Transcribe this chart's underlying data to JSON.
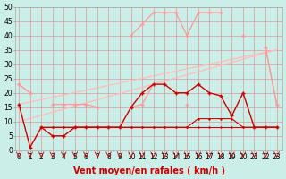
{
  "background_color": "#cceee8",
  "grid_color": "#dd8888",
  "xlabel": "Vent moyen/en rafales ( km/h )",
  "xlim": [
    -0.3,
    23.5
  ],
  "ylim": [
    0,
    50
  ],
  "yticks": [
    0,
    5,
    10,
    15,
    20,
    25,
    30,
    35,
    40,
    45,
    50
  ],
  "xticks": [
    0,
    1,
    2,
    3,
    4,
    5,
    6,
    7,
    8,
    9,
    10,
    11,
    12,
    13,
    14,
    15,
    16,
    17,
    18,
    19,
    20,
    21,
    22,
    23
  ],
  "tick_fontsize": 5.5,
  "label_fontsize": 7,
  "series": {
    "trend1": {
      "color": "#ffbbbb",
      "linewidth": 0.9,
      "x": [
        0,
        23
      ],
      "y": [
        10,
        35
      ]
    },
    "trend2": {
      "color": "#ffbbbb",
      "linewidth": 0.9,
      "x": [
        0,
        23
      ],
      "y": [
        16,
        35
      ]
    },
    "upper_jagged": {
      "color": "#ff9999",
      "linewidth": 0.9,
      "marker": "+",
      "markersize": 3,
      "x": [
        0,
        1,
        2,
        3,
        4,
        5,
        6,
        7,
        8,
        9,
        10,
        11,
        12,
        13,
        14,
        15,
        16,
        17,
        18,
        19,
        20,
        21,
        22,
        23
      ],
      "y": [
        23,
        20,
        null,
        null,
        null,
        null,
        null,
        null,
        null,
        null,
        40,
        44,
        48,
        48,
        48,
        40,
        48,
        48,
        48,
        null,
        40,
        null,
        36,
        16
      ]
    },
    "mid_jagged": {
      "color": "#ff9999",
      "linewidth": 0.9,
      "marker": "+",
      "markersize": 3,
      "x": [
        0,
        1,
        2,
        3,
        4,
        5,
        6,
        7,
        8,
        9,
        10,
        11,
        12,
        13,
        14,
        15,
        16,
        17,
        18,
        19,
        20,
        21,
        22,
        23
      ],
      "y": [
        23,
        20,
        null,
        16,
        16,
        16,
        16,
        15,
        null,
        null,
        15,
        16,
        23,
        null,
        null,
        16,
        null,
        null,
        null,
        null,
        40,
        null,
        36,
        16
      ]
    },
    "dark1": {
      "color": "#cc0000",
      "linewidth": 1.0,
      "marker": "+",
      "markersize": 3,
      "x": [
        0,
        1,
        2,
        3,
        4,
        5,
        6,
        7,
        8,
        9,
        10,
        11,
        12,
        13,
        14,
        15,
        16,
        17,
        18,
        19,
        20,
        21,
        22,
        23
      ],
      "y": [
        16,
        1,
        8,
        5,
        5,
        8,
        8,
        8,
        8,
        8,
        15,
        20,
        23,
        23,
        20,
        20,
        23,
        20,
        19,
        12,
        20,
        8,
        8,
        8
      ]
    },
    "dark2": {
      "color": "#cc0000",
      "linewidth": 0.8,
      "marker": "+",
      "markersize": 2,
      "x": [
        2,
        3,
        4,
        5,
        6,
        7,
        8,
        9,
        10,
        11,
        12,
        13,
        14,
        15,
        16,
        17,
        18,
        19,
        20,
        21,
        22,
        23
      ],
      "y": [
        8,
        8,
        8,
        8,
        8,
        8,
        8,
        8,
        8,
        8,
        8,
        8,
        8,
        8,
        11,
        11,
        11,
        11,
        8,
        8,
        8,
        8
      ]
    },
    "dark3": {
      "color": "#cc0000",
      "linewidth": 0.8,
      "marker": "+",
      "markersize": 2,
      "x": [
        2,
        3,
        4,
        5,
        6,
        7,
        8,
        9,
        10,
        11,
        12,
        13,
        14,
        15,
        16,
        17,
        18,
        19,
        20,
        21,
        22,
        23
      ],
      "y": [
        8,
        8,
        8,
        8,
        8,
        8,
        8,
        8,
        8,
        8,
        8,
        8,
        8,
        8,
        8,
        8,
        8,
        8,
        8,
        8,
        8,
        8
      ]
    }
  },
  "arrows_x": [
    0,
    1,
    2,
    3,
    4,
    5,
    6,
    7,
    8,
    9,
    10,
    11,
    12,
    13,
    14,
    15,
    16,
    17,
    18,
    19,
    20,
    21,
    22,
    23
  ]
}
